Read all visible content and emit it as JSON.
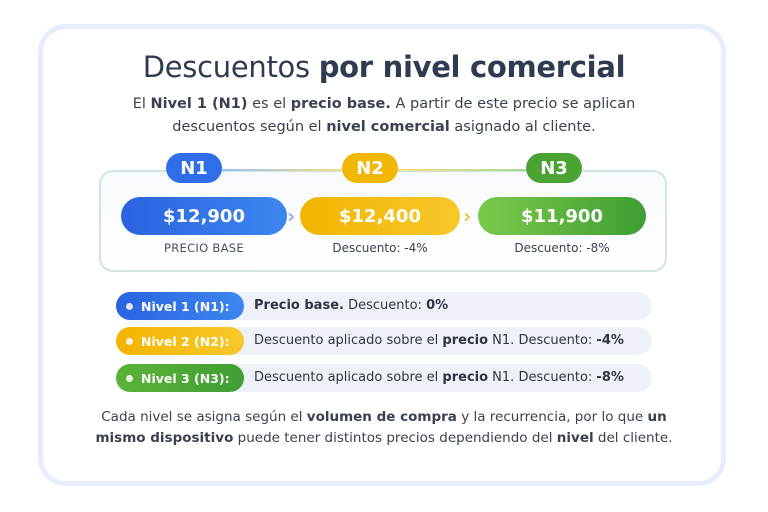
{
  "title": {
    "part1": "Descuentos",
    "part2": "por nivel comercial"
  },
  "intro": {
    "t1": "El ",
    "b1": "Nivel 1 (N1)",
    "t2": " es el ",
    "b2": "precio base.",
    "t3": " A partir de este precio se aplican descuentos según el ",
    "b3": "nivel comercial",
    "t4": " asignado al cliente."
  },
  "levels": [
    {
      "tag": "N1",
      "price": "$12,900",
      "caption": "PRECIO BASE",
      "color": "#2f6ee6"
    },
    {
      "tag": "N2",
      "price": "$12,400",
      "caption": "Descuento: -4%",
      "color": "#f2b705"
    },
    {
      "tag": "N3",
      "price": "$11,900",
      "caption": "Descuento: -8%",
      "color": "#4aa332"
    }
  ],
  "rows": [
    {
      "badge": "Nivel 1 (N1):",
      "b1": "Precio base.",
      "t1": " Descuento: ",
      "b2": "0%",
      "t2": "",
      "b3": "",
      "t3": ""
    },
    {
      "badge": "Nivel 2 (N2):",
      "b1": "",
      "t1": "Descuento aplicado sobre el ",
      "b2": "precio",
      "t2": " N1. Descuento: ",
      "b3": "-4%",
      "t3": ""
    },
    {
      "badge": "Nivel 3 (N3):",
      "b1": "",
      "t1": "Descuento aplicado sobre el ",
      "b2": "precio",
      "t2": " N1. Descuento: ",
      "b3": "-8%",
      "t3": ""
    }
  ],
  "footer": {
    "t1": "Cada nivel se asigna según el ",
    "b1": "volumen de compra",
    "t2": " y la recurrencia, por lo que ",
    "b2": "un mismo dispositivo",
    "t3": " puede tener distintos precios dependiendo del ",
    "b3": "nivel",
    "t4": " del cliente."
  }
}
